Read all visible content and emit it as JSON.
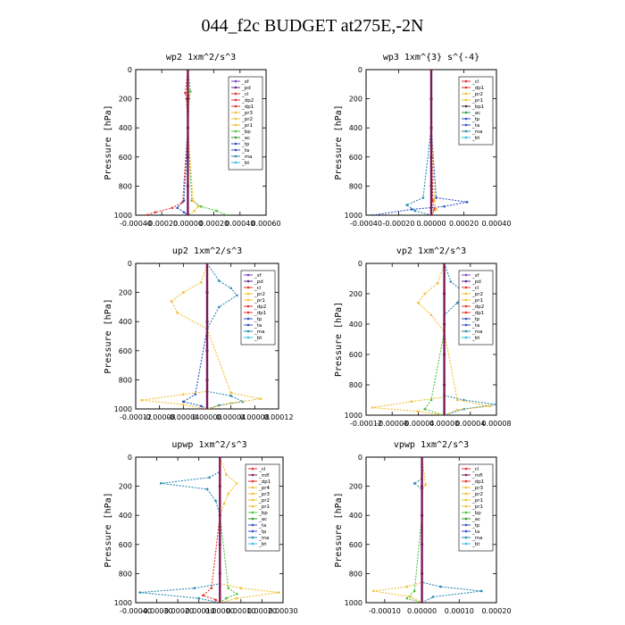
{
  "figure_title": "044_f2c  BUDGET at275E,-2N",
  "series_colors": {
    "sf": "#7b3fbf",
    "pd": "#5c2a8a",
    "cl": "#e0302a",
    "dp2": "#e0302a",
    "dp1": "#e0302a",
    "pr3": "#f0c030",
    "pr2": "#f0c030",
    "pr1": "#f0c030",
    "pr4": "#f0c030",
    "bp": "#50c040",
    "ac": "#2a9a3a",
    "tp": "#3050c0",
    "ta": "#3050c0",
    "ma": "#2a8ab0",
    "bt": "#30c0e0",
    "mfl": "#7b1a5a"
  },
  "chart_data": [
    {
      "type": "line",
      "title": "wp2   1xm^2/s^3",
      "ylabel": "Pressure [hPa]",
      "ylim": [
        1000,
        0
      ],
      "xlim": [
        -0.0004,
        0.0006
      ],
      "xticks": [
        "-0.00040",
        "-0.00020",
        "0.00000",
        "0.00020",
        "0.00040",
        "0.00060"
      ],
      "yticks": [
        "0",
        "200",
        "400",
        "600",
        "800",
        "1000"
      ],
      "legend": [
        "_sf",
        "_pd",
        "_cl",
        "_dp2",
        "_dp1",
        "_pr3",
        "_pr2",
        "_pr1",
        "_bp",
        "_ac",
        "_tp",
        "_ta",
        "_ma",
        "_bt"
      ],
      "series": [
        {
          "key": "bp",
          "x": [
            0,
            2e-05,
            1e-05,
            0,
            3e-05,
            0.0001,
            0.00022,
            0.0003
          ],
          "y": [
            0,
            150,
            200,
            400,
            900,
            940,
            970,
            1000
          ]
        },
        {
          "key": "cl",
          "x": [
            0,
            -2e-05,
            -1e-05,
            0,
            -4e-05,
            -0.00012,
            -0.00025,
            -0.00032
          ],
          "y": [
            0,
            160,
            200,
            400,
            910,
            950,
            980,
            1000
          ]
        },
        {
          "key": "pr1",
          "x": [
            0,
            1e-05,
            0,
            4e-05,
            8e-05,
            5e-05,
            0
          ],
          "y": [
            0,
            180,
            400,
            900,
            940,
            970,
            1000
          ]
        },
        {
          "key": "tp",
          "x": [
            0,
            0,
            -3e-05,
            -8e-05,
            -3e-05,
            0
          ],
          "y": [
            0,
            400,
            900,
            950,
            980,
            1000
          ]
        },
        {
          "key": "mfl",
          "x": [
            0,
            0,
            0,
            0,
            0,
            0
          ],
          "y": [
            0,
            200,
            400,
            600,
            800,
            1000
          ]
        }
      ]
    },
    {
      "type": "line",
      "title": "wp3   1xm^{3} s^{-4}",
      "ylabel": "Pressure [hPa]",
      "ylim": [
        1000,
        0
      ],
      "xlim": [
        -0.0004,
        0.0004
      ],
      "xticks": [
        "-0.00040",
        "-0.00020",
        "0.00000",
        "0.00020",
        "0.00040"
      ],
      "yticks": [
        "0",
        "200",
        "400",
        "600",
        "800",
        "1000"
      ],
      "legend": [
        "_cl",
        "_dp1",
        "_pr2",
        "_pr1",
        "_bp1",
        "_ac",
        "_tp",
        "_ta",
        "_ma",
        "_bt"
      ],
      "series": [
        {
          "key": "tp",
          "x": [
            0,
            0,
            3e-05,
            0.00022,
            8e-05,
            -0.00012,
            -0.00036
          ],
          "y": [
            0,
            400,
            880,
            910,
            940,
            960,
            1000
          ]
        },
        {
          "key": "ma",
          "x": [
            0,
            0,
            -5e-05,
            -0.00015,
            -0.0001,
            0
          ],
          "y": [
            0,
            400,
            880,
            930,
            970,
            1000
          ]
        },
        {
          "key": "cl",
          "x": [
            0,
            0,
            1e-05,
            2e-05,
            0
          ],
          "y": [
            0,
            400,
            900,
            960,
            1000
          ]
        },
        {
          "key": "pr1",
          "x": [
            0,
            0,
            2e-05,
            3e-05,
            0
          ],
          "y": [
            0,
            400,
            900,
            960,
            1000
          ]
        },
        {
          "key": "mfl",
          "x": [
            0,
            0,
            0,
            0,
            0,
            0
          ],
          "y": [
            0,
            200,
            400,
            600,
            800,
            1000
          ]
        }
      ]
    },
    {
      "type": "line",
      "title": "up2   1xm^2/s^3",
      "ylabel": "Pressure [hPa]",
      "ylim": [
        1000,
        0
      ],
      "xlim": [
        -0.00012,
        0.00012
      ],
      "xticks": [
        "-0.00012",
        "-0.00008",
        "-0.00004",
        "0.00000",
        "0.00004",
        "0.00008",
        "0.00012"
      ],
      "yticks": [
        "0",
        "200",
        "400",
        "600",
        "800",
        "1000"
      ],
      "legend": [
        "_sf",
        "_pd",
        "_cl",
        "_pr2",
        "_pr1",
        "_dp2",
        "_dp1",
        "_tp",
        "_ta",
        "_ma",
        "_bt"
      ],
      "series": [
        {
          "key": "pr1",
          "x": [
            0,
            -1e-05,
            -4e-05,
            -6e-05,
            -5e-05,
            0,
            0,
            -4e-05,
            -0.00011,
            -4e-05,
            0
          ],
          "y": [
            0,
            130,
            200,
            260,
            340,
            450,
            880,
            900,
            940,
            970,
            1000
          ]
        },
        {
          "key": "ma",
          "x": [
            0,
            2e-05,
            4e-05,
            5e-05,
            2e-05,
            0,
            0,
            4e-05,
            6e-05,
            2e-05,
            0
          ],
          "y": [
            0,
            120,
            170,
            220,
            300,
            450,
            880,
            910,
            950,
            975,
            1000
          ]
        },
        {
          "key": "pr2",
          "x": [
            0,
            0,
            4e-05,
            9e-05,
            4e-05,
            0
          ],
          "y": [
            0,
            450,
            890,
            930,
            960,
            1000
          ]
        },
        {
          "key": "tp",
          "x": [
            0,
            0,
            -2e-05,
            -4e-05,
            -1e-05,
            0
          ],
          "y": [
            0,
            450,
            900,
            950,
            980,
            1000
          ]
        },
        {
          "key": "mfl",
          "x": [
            0,
            0,
            0,
            0,
            0,
            0
          ],
          "y": [
            0,
            200,
            400,
            600,
            800,
            1000
          ]
        }
      ]
    },
    {
      "type": "line",
      "title": "vp2   1xm^2/s^3",
      "ylabel": "Pressure [hPa]",
      "ylim": [
        1000,
        0
      ],
      "xlim": [
        -0.00012,
        8e-05
      ],
      "xticks": [
        "-0.00012",
        "-0.00008",
        "-0.00004",
        "0.00000",
        "0.00004",
        "0.00008"
      ],
      "yticks": [
        "0",
        "200",
        "400",
        "600",
        "800",
        "1000"
      ],
      "legend": [
        "_sf",
        "_pd",
        "_cl",
        "_pr2",
        "_pr1",
        "_dp2",
        "_dp1",
        "_tp",
        "_ta",
        "_ma",
        "_bt"
      ],
      "series": [
        {
          "key": "pr1",
          "x": [
            0,
            -1e-05,
            -3e-05,
            -4e-05,
            -2e-05,
            0,
            0,
            -5e-05,
            -0.00011,
            -4e-05,
            0
          ],
          "y": [
            0,
            130,
            200,
            260,
            340,
            450,
            880,
            910,
            950,
            975,
            1000
          ]
        },
        {
          "key": "ma",
          "x": [
            0,
            1e-05,
            3e-05,
            2e-05,
            0,
            0,
            3e-05,
            8e-05,
            3e-05,
            0
          ],
          "y": [
            0,
            120,
            190,
            260,
            340,
            870,
            900,
            930,
            960,
            1000
          ]
        },
        {
          "key": "pr2",
          "x": [
            0,
            0,
            2e-05,
            7e-05,
            2e-05,
            0
          ],
          "y": [
            0,
            450,
            900,
            940,
            965,
            1000
          ]
        },
        {
          "key": "bp",
          "x": [
            0,
            0,
            -2e-05,
            -3e-05,
            0
          ],
          "y": [
            0,
            450,
            900,
            960,
            1000
          ]
        },
        {
          "key": "mfl",
          "x": [
            0,
            0,
            0,
            0,
            0,
            0
          ],
          "y": [
            0,
            200,
            400,
            600,
            800,
            1000
          ]
        }
      ]
    },
    {
      "type": "line",
      "title": "upwp   1xm^2/s^3",
      "ylabel": "Pressure [hPa]",
      "ylim": [
        1000,
        0
      ],
      "xlim": [
        -0.0004,
        0.0003
      ],
      "xticks": [
        "-0.00040",
        "-0.00030",
        "-0.00020",
        "-0.00010",
        "0.00000",
        "0.00010",
        "0.00020",
        "0.00030"
      ],
      "yticks": [
        "0",
        "200",
        "400",
        "600",
        "800",
        "1000"
      ],
      "legend": [
        "_cl",
        "_mfl",
        "_dp1",
        "_pr4",
        "_pr3",
        "_pr2",
        "_pr1",
        "_bp",
        "_ac",
        "_ta",
        "_tp",
        "_ma",
        "_bt"
      ],
      "series": [
        {
          "key": "ma",
          "x": [
            0,
            0,
            -5e-05,
            -0.00028,
            -6e-05,
            -2e-05,
            0,
            0,
            -0.00012,
            -0.00038,
            -0.0001,
            0
          ],
          "y": [
            0,
            100,
            140,
            180,
            220,
            300,
            400,
            870,
            900,
            930,
            970,
            1000
          ]
        },
        {
          "key": "pr2",
          "x": [
            0,
            3e-05,
            8e-05,
            4e-05,
            2e-05,
            0,
            0,
            0.0001,
            0.00028,
            8e-05,
            0
          ],
          "y": [
            0,
            120,
            180,
            250,
            320,
            400,
            870,
            900,
            930,
            970,
            1000
          ]
        },
        {
          "key": "bp",
          "x": [
            0,
            0,
            4e-05,
            8e-05,
            3e-05,
            0
          ],
          "y": [
            0,
            400,
            900,
            940,
            970,
            1000
          ]
        },
        {
          "key": "cl",
          "x": [
            0,
            0,
            -4e-05,
            -8e-05,
            -2e-05,
            0
          ],
          "y": [
            0,
            400,
            900,
            950,
            980,
            1000
          ]
        },
        {
          "key": "mfl",
          "x": [
            0,
            0,
            0,
            0,
            0,
            0
          ],
          "y": [
            0,
            200,
            400,
            600,
            800,
            1000
          ]
        }
      ]
    },
    {
      "type": "line",
      "title": "vpwp   1xm^2/s^3",
      "ylabel": "Pressure [hPa]",
      "ylim": [
        1000,
        0
      ],
      "xlim": [
        -0.00015,
        0.0002
      ],
      "xticks": [
        "-0.00010",
        "0.00000",
        "0.00010",
        "0.00020"
      ],
      "yticks": [
        "0",
        "200",
        "400",
        "600",
        "800",
        "1000"
      ],
      "legend": [
        "_cl",
        "_mfl",
        "_dp1",
        "_pr3",
        "_pr2",
        "_pr1",
        "_pr1",
        "_bp",
        "_ac",
        "_tp",
        "_ta",
        "_ma",
        "_bt"
      ],
      "series": [
        {
          "key": "ma",
          "x": [
            0,
            0,
            -2e-05,
            0,
            0,
            5e-05,
            0.00016,
            3e-05,
            0
          ],
          "y": [
            0,
            150,
            180,
            220,
            860,
            890,
            920,
            960,
            1000
          ]
        },
        {
          "key": "pr2",
          "x": [
            0,
            1e-05,
            0,
            0,
            -4e-05,
            -0.00013,
            -3e-05,
            0
          ],
          "y": [
            0,
            190,
            230,
            860,
            890,
            920,
            960,
            1000
          ]
        },
        {
          "key": "bp",
          "x": [
            0,
            0,
            -2e-05,
            -4e-05,
            0
          ],
          "y": [
            0,
            400,
            920,
            970,
            1000
          ]
        },
        {
          "key": "mfl",
          "x": [
            0,
            0,
            0,
            0,
            0,
            0
          ],
          "y": [
            0,
            200,
            400,
            600,
            800,
            1000
          ]
        }
      ]
    }
  ]
}
